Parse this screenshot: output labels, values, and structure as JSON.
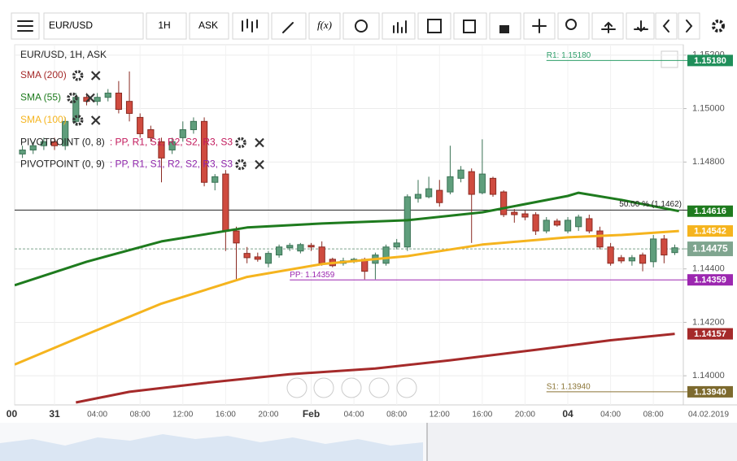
{
  "toolbar": {
    "symbol": "EUR/USD",
    "timeframe": "1H",
    "side": "ASK",
    "function_button": "f(x)"
  },
  "legend": {
    "title": "EUR/USD, 1H, ASK",
    "pivots": [
      {
        "name": "PIVOTPOINT (0, 8)",
        "levels_text": ": PP, R1, S1, R2, S2, R3, S3",
        "color": "#c2185b"
      },
      {
        "name": "PIVOTPOINT (0, 9)",
        "levels_text": ": PP, R1, S1, R2, S2, R3, S3",
        "color": "#8e24aa"
      }
    ]
  },
  "chart_data": {
    "type": "candlestick",
    "x": [
      0,
      1,
      2,
      3,
      4,
      5,
      6,
      7,
      8,
      9,
      10,
      11,
      12,
      13,
      14,
      15,
      16,
      17,
      18,
      19,
      20,
      21,
      22,
      23,
      24,
      25,
      26,
      27,
      28,
      29,
      30,
      31,
      32,
      33,
      34,
      35,
      36,
      37,
      38,
      39,
      40,
      41,
      42,
      43,
      44,
      45,
      46,
      47,
      48,
      49,
      50,
      51,
      52,
      53,
      54,
      55,
      56,
      57,
      58,
      59,
      60,
      61
    ],
    "open": [
      1.1483,
      1.14845,
      1.14861,
      1.14876,
      1.14861,
      1.14952,
      1.15042,
      1.15027,
      1.15042,
      1.15058,
      1.15027,
      1.14967,
      1.14921,
      1.14876,
      1.14845,
      1.14891,
      1.14921,
      1.14952,
      1.14724,
      1.14755,
      1.14542,
      1.14458,
      1.14445,
      1.14421,
      1.14452,
      1.14479,
      1.14467,
      1.14488,
      1.14482,
      1.14436,
      1.14421,
      1.14427,
      1.14436,
      1.14421,
      1.14421,
      1.14482,
      1.14482,
      1.14664,
      1.1467,
      1.14694,
      1.14688,
      1.14739,
      1.14764,
      1.14685,
      1.14739,
      1.14688,
      1.14612,
      1.14606,
      1.14603,
      1.14542,
      1.14579,
      1.14542,
      1.14558,
      1.14588,
      1.14542,
      1.14482,
      1.14442,
      1.1443,
      1.14452,
      1.14427,
      1.14512,
      1.14461
    ],
    "high": [
      1.14861,
      1.14876,
      1.14891,
      1.14891,
      1.14967,
      1.15058,
      1.15058,
      1.15058,
      1.15073,
      1.15103,
      1.15139,
      1.14982,
      1.14936,
      1.14891,
      1.14891,
      1.14952,
      1.14967,
      1.14967,
      1.14755,
      1.1477,
      1.14558,
      1.14482,
      1.14461,
      1.14467,
      1.14491,
      1.14497,
      1.14497,
      1.14497,
      1.14503,
      1.14442,
      1.14442,
      1.14442,
      1.14442,
      1.14461,
      1.14491,
      1.14512,
      1.14679,
      1.14733,
      1.14745,
      1.14733,
      1.14861,
      1.14785,
      1.14776,
      1.14885,
      1.14745,
      1.14694,
      1.14624,
      1.14618,
      1.14612,
      1.14594,
      1.14588,
      1.14594,
      1.14603,
      1.14603,
      1.14558,
      1.14497,
      1.14452,
      1.14452,
      1.14461,
      1.14527,
      1.14527,
      1.14491
    ],
    "low": [
      1.14815,
      1.1483,
      1.14845,
      1.14845,
      1.14845,
      1.14936,
      1.15012,
      1.15012,
      1.15027,
      1.14982,
      1.14952,
      1.14891,
      1.14876,
      1.14724,
      1.1483,
      1.14876,
      1.14906,
      1.14709,
      1.14694,
      1.14467,
      1.14361,
      1.14421,
      1.14427,
      1.14406,
      1.14442,
      1.14467,
      1.14458,
      1.14467,
      1.14412,
      1.14406,
      1.14412,
      1.14421,
      1.14361,
      1.14361,
      1.14412,
      1.14473,
      1.14467,
      1.14648,
      1.14664,
      1.14633,
      1.14679,
      1.14724,
      1.14497,
      1.14679,
      1.1467,
      1.14594,
      1.14573,
      1.14582,
      1.14527,
      1.14533,
      1.14558,
      1.14533,
      1.14542,
      1.14533,
      1.14473,
      1.14412,
      1.14421,
      1.14412,
      1.14391,
      1.14406,
      1.14421,
      1.14452
    ],
    "close": [
      1.14845,
      1.14861,
      1.14876,
      1.14861,
      1.14952,
      1.15042,
      1.15027,
      1.15042,
      1.15058,
      1.14997,
      1.14982,
      1.14906,
      1.14891,
      1.14815,
      1.14876,
      1.14921,
      1.14952,
      1.14724,
      1.14745,
      1.14542,
      1.14497,
      1.14442,
      1.14436,
      1.14458,
      1.14482,
      1.14488,
      1.14491,
      1.14482,
      1.14421,
      1.14412,
      1.1443,
      1.14436,
      1.14391,
      1.14452,
      1.14482,
      1.14497,
      1.1467,
      1.14679,
      1.147,
      1.14648,
      1.14745,
      1.1477,
      1.14679,
      1.14755,
      1.14679,
      1.14603,
      1.14603,
      1.14594,
      1.14542,
      1.14582,
      1.14564,
      1.14582,
      1.14594,
      1.14542,
      1.14482,
      1.14421,
      1.1443,
      1.14442,
      1.14421,
      1.14512,
      1.14452,
      1.14479
    ],
    "up_color": "#5f9e7c",
    "up_border": "#3b7356",
    "down_color": "#cf4b3f",
    "down_border": "#8a2a22",
    "xlim": [
      -0.73,
      61.8
    ],
    "xticks": [
      {
        "value": -1,
        "label": "00"
      },
      {
        "value": 3,
        "label": "31"
      },
      {
        "value": 7,
        "label": "04:00"
      },
      {
        "value": 11,
        "label": "08:00"
      },
      {
        "value": 15,
        "label": "12:00"
      },
      {
        "value": 19,
        "label": "16:00"
      },
      {
        "value": 23,
        "label": "20:00"
      },
      {
        "value": 27,
        "label": "Feb"
      },
      {
        "value": 31,
        "label": "04:00"
      },
      {
        "value": 35,
        "label": "08:00"
      },
      {
        "value": 39,
        "label": "12:00"
      },
      {
        "value": 43,
        "label": "16:00"
      },
      {
        "value": 47,
        "label": "20:00"
      },
      {
        "value": 51,
        "label": "04"
      },
      {
        "value": 55,
        "label": "04:00"
      },
      {
        "value": 59,
        "label": "08:00"
      }
    ],
    "date_label": "04.02.2019",
    "ylim": [
      1.13891,
      1.15239
    ],
    "yticks": [
      {
        "value": 1.152,
        "label": "1.15200"
      },
      {
        "value": 1.15,
        "label": "1.15000"
      },
      {
        "value": 1.148,
        "label": "1.14800"
      },
      {
        "value": 1.144,
        "label": "1.14400"
      },
      {
        "value": 1.142,
        "label": "1.14200"
      },
      {
        "value": 1.14,
        "label": "1.14000"
      }
    ],
    "grid": true,
    "series": [
      {
        "name": "SMA (200)",
        "color": "#a52a2a",
        "x": [
          5,
          10,
          17,
          25,
          33,
          40,
          48,
          55,
          61
        ],
        "values": [
          1.139,
          1.1394,
          1.13973,
          1.14006,
          1.14027,
          1.14058,
          1.14097,
          1.14133,
          1.14157
        ],
        "last_value": 1.14157
      },
      {
        "name": "SMA (55)",
        "color": "#1e7b1e",
        "x": [
          -0.73,
          6,
          13,
          21,
          28,
          36,
          43,
          51,
          52,
          56,
          61.4
        ],
        "values": [
          1.14339,
          1.14427,
          1.14503,
          1.14555,
          1.1457,
          1.14582,
          1.14612,
          1.14673,
          1.14685,
          1.14658,
          1.14616
        ],
        "last_value": 1.14616
      },
      {
        "name": "SMA (100)",
        "color": "#f5b41e",
        "x": [
          -0.73,
          6,
          13,
          21,
          28,
          36,
          43,
          51,
          56,
          61.4
        ],
        "values": [
          1.14042,
          1.14155,
          1.1427,
          1.1437,
          1.14418,
          1.14448,
          1.14491,
          1.14518,
          1.14527,
          1.14542
        ],
        "last_value": 1.14542
      }
    ],
    "levels": [
      {
        "text": "R1: 1.15180",
        "value": {
          "value": 1.1518,
          "label": "1.15180"
        },
        "from": 49,
        "color": "#2e9e6a",
        "axis_color": "#1f8f5a"
      },
      {
        "text": "50.00 % (1.1462)",
        "value": 1.1462,
        "color": "#222222"
      },
      {
        "value": 1.14475,
        "color": "#7fa58f",
        "axis_color": "#7fa58f",
        "dashed": true
      },
      {
        "text": "PP: 1.14359",
        "value": 1.14359,
        "from": 25,
        "color": "#9c27b0",
        "axis_color": "#9c27b0"
      },
      {
        "text": "S1: 1.13940",
        "value": {
          "value": 1.1394,
          "label": "1.13940"
        },
        "from": 49,
        "color": "#8b7536",
        "axis_color": "#7d6a2e"
      }
    ]
  }
}
